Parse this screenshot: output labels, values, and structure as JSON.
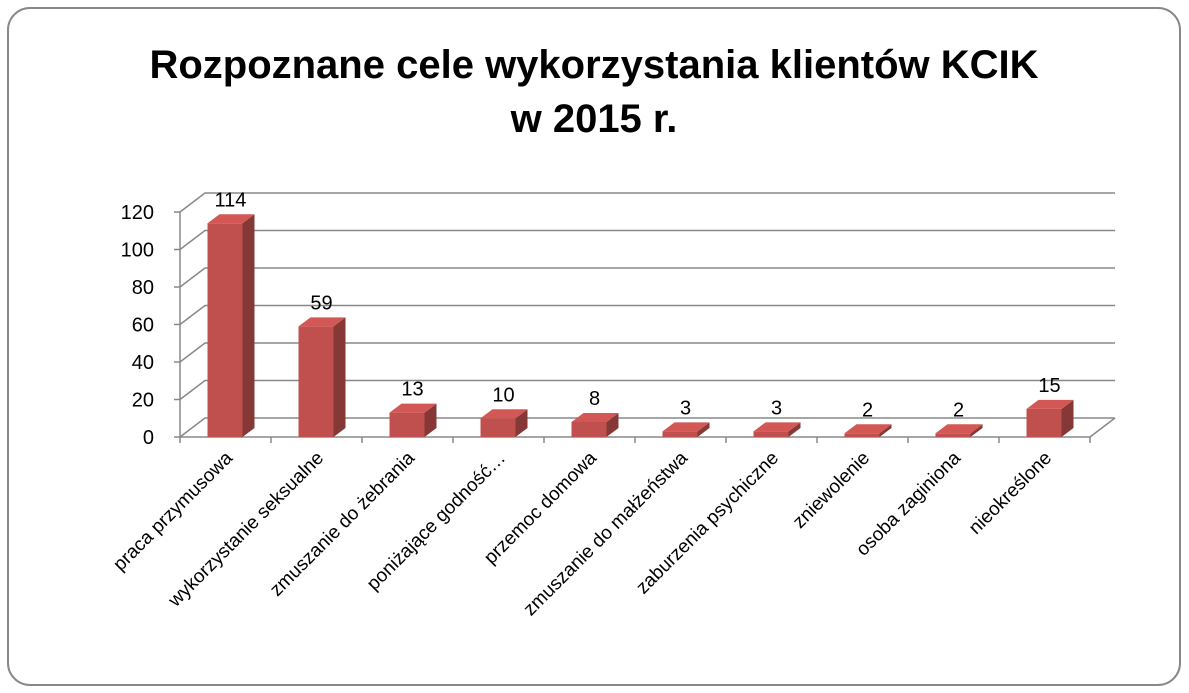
{
  "chart_data": {
    "type": "bar3d",
    "title": [
      "Rozpoznane cele wykorzystania klientów KCIK",
      "w 2015 r."
    ],
    "categories": [
      "praca przymusowa",
      "wykorzystanie seksualne",
      "zmuszanie do żebrania",
      "poniżające godność…",
      "przemoc domowa",
      "zmuszanie do małżeństwa",
      "zaburzenia psychiczne",
      "zniewolenie",
      "osoba zaginiona",
      "nieokreślone"
    ],
    "values": [
      114,
      59,
      13,
      10,
      8,
      3,
      3,
      2,
      2,
      15
    ],
    "color": "#c0504d",
    "ylim": [
      0,
      120
    ],
    "yticks": [
      0,
      20,
      40,
      60,
      80,
      100,
      120
    ],
    "grid": true
  }
}
